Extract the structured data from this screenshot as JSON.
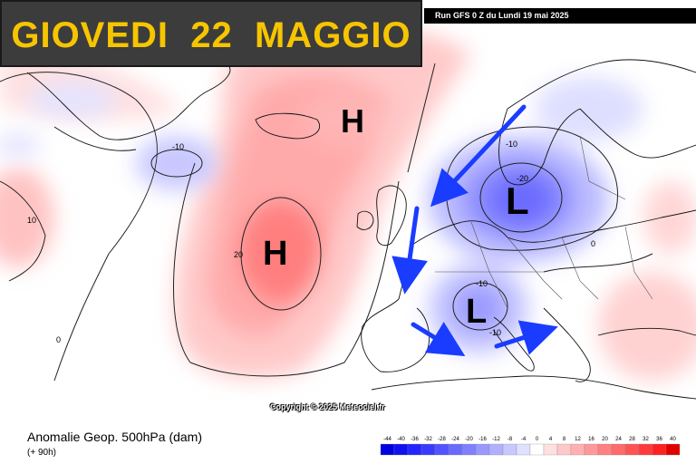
{
  "header": {
    "title": "GIOVEDI  22  MAGGIO",
    "run_info": "Run GFS 0 Z du Lundi 19 mai 2025"
  },
  "map": {
    "copyright": "Copyright © 2025 Meteociel.fr",
    "pressure_centers": [
      {
        "label": "H",
        "kind": "high",
        "location": "north atlantic near iceland"
      },
      {
        "label": "H",
        "kind": "high",
        "location": "central north atlantic"
      },
      {
        "label": "L",
        "kind": "low",
        "location": "baltic / southern scandinavia"
      },
      {
        "label": "L",
        "kind": "low",
        "location": "northern italy / alps"
      }
    ],
    "contour_labels": [
      "-10",
      "10",
      "20",
      "0",
      "-10",
      "-20",
      "-10",
      "0",
      "-10"
    ],
    "arrow_color": "#1a3cff",
    "high_color": "#ff5050",
    "low_color": "#4a4aff"
  },
  "footer": {
    "field_title": "Anomalie Geop. 500hPa (dam)",
    "forecast_hour": "(+ 90h)"
  },
  "legend": {
    "ticks": [
      "-44",
      "-40",
      "-36",
      "-32",
      "-28",
      "-24",
      "-20",
      "-16",
      "-12",
      "-8",
      "-4",
      "0",
      "4",
      "8",
      "12",
      "16",
      "20",
      "24",
      "28",
      "32",
      "36",
      "40"
    ],
    "colors": [
      "#0000e0",
      "#1010f0",
      "#2424ff",
      "#3a3aff",
      "#5252ff",
      "#6a6aff",
      "#8080ff",
      "#9898ff",
      "#b0b0ff",
      "#c8c8ff",
      "#e0e0ff",
      "#ffffff",
      "#ffe0e0",
      "#ffc8c8",
      "#ffb0b0",
      "#ff9898",
      "#ff8080",
      "#ff6a6a",
      "#ff5252",
      "#ff3a3a",
      "#ff2020",
      "#e00000"
    ]
  }
}
